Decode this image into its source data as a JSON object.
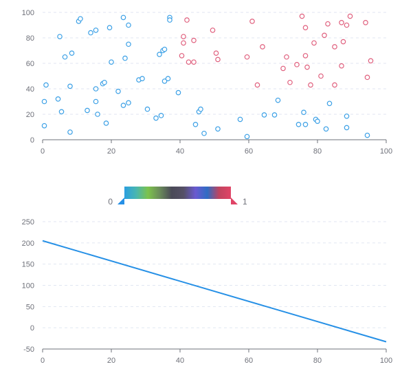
{
  "chart_data": [
    {
      "type": "scatter",
      "xlim": [
        0,
        100
      ],
      "ylim": [
        0,
        100
      ],
      "x_ticks": [
        "0",
        "20",
        "40",
        "60",
        "80",
        "100"
      ],
      "y_ticks": [
        "0",
        "20",
        "40",
        "60",
        "80",
        "100"
      ],
      "grid": true,
      "series": [
        {
          "color": "#3ba0e6",
          "points": [
            [
              0.5,
              11
            ],
            [
              0.5,
              30
            ],
            [
              1,
              43
            ],
            [
              4.5,
              32
            ],
            [
              5,
              81
            ],
            [
              5.5,
              22
            ],
            [
              6.5,
              65
            ],
            [
              8,
              42
            ],
            [
              8,
              6
            ],
            [
              8.5,
              68
            ],
            [
              10.5,
              93
            ],
            [
              11,
              95
            ],
            [
              13,
              23
            ],
            [
              14,
              84
            ],
            [
              15.5,
              86
            ],
            [
              15.5,
              40
            ],
            [
              15.5,
              30
            ],
            [
              16,
              20
            ],
            [
              17.5,
              44
            ],
            [
              18,
              45
            ],
            [
              18.5,
              13
            ],
            [
              19.5,
              88
            ],
            [
              20,
              61
            ],
            [
              22,
              38
            ],
            [
              23.5,
              96
            ],
            [
              23.5,
              27
            ],
            [
              24,
              64
            ],
            [
              25,
              90
            ],
            [
              25,
              75
            ],
            [
              25,
              29
            ],
            [
              28,
              47
            ],
            [
              29,
              48
            ],
            [
              30.5,
              24
            ],
            [
              33,
              17
            ],
            [
              34,
              67
            ],
            [
              34.5,
              19
            ],
            [
              35,
              70
            ],
            [
              35.5,
              71
            ],
            [
              35.5,
              46
            ],
            [
              36.5,
              48
            ],
            [
              37,
              96
            ],
            [
              37,
              94
            ],
            [
              39.5,
              37
            ],
            [
              44.5,
              12
            ],
            [
              45.5,
              22
            ],
            [
              46,
              24
            ],
            [
              47,
              5
            ],
            [
              51,
              8.5
            ],
            [
              57.5,
              16
            ],
            [
              59.5,
              2.5
            ],
            [
              64.5,
              19.5
            ],
            [
              67.5,
              19.5
            ],
            [
              68.5,
              31
            ],
            [
              74.5,
              12
            ],
            [
              76,
              21.5
            ],
            [
              76.5,
              12
            ],
            [
              79.5,
              16
            ],
            [
              80,
              14.5
            ],
            [
              82.5,
              8.5
            ],
            [
              83.5,
              28.5
            ],
            [
              88.5,
              9.5
            ],
            [
              88.5,
              18.5
            ],
            [
              94.5,
              3.5
            ]
          ]
        },
        {
          "color": "#e0607e",
          "points": [
            [
              40.5,
              66
            ],
            [
              41,
              76
            ],
            [
              41,
              81
            ],
            [
              42,
              94
            ],
            [
              42.5,
              61
            ],
            [
              44,
              78
            ],
            [
              44,
              61
            ],
            [
              49.5,
              86
            ],
            [
              50.5,
              68
            ],
            [
              51,
              63
            ],
            [
              59.5,
              65
            ],
            [
              61,
              93
            ],
            [
              62.5,
              43
            ],
            [
              64,
              73
            ],
            [
              70,
              56
            ],
            [
              71,
              65
            ],
            [
              72,
              45
            ],
            [
              74,
              59
            ],
            [
              75.5,
              97
            ],
            [
              76.5,
              88
            ],
            [
              76.5,
              66
            ],
            [
              77,
              57
            ],
            [
              78,
              43
            ],
            [
              79,
              76
            ],
            [
              81,
              50
            ],
            [
              82,
              82
            ],
            [
              83,
              91
            ],
            [
              85,
              43
            ],
            [
              85,
              73
            ],
            [
              87,
              58
            ],
            [
              87,
              92
            ],
            [
              87.5,
              77
            ],
            [
              88.5,
              90
            ],
            [
              89.5,
              97
            ],
            [
              94,
              92
            ],
            [
              94.5,
              49
            ],
            [
              95.5,
              62
            ]
          ]
        }
      ]
    },
    {
      "type": "line",
      "xlim": [
        0,
        100
      ],
      "ylim": [
        -50,
        250
      ],
      "x_ticks": [
        "0",
        "20",
        "40",
        "60",
        "80",
        "100"
      ],
      "y_ticks": [
        "-50",
        "0",
        "50",
        "100",
        "150",
        "200",
        "250"
      ],
      "grid": true,
      "series": [
        {
          "color": "#2690e6",
          "x": [
            0,
            100
          ],
          "y": [
            205,
            -33
          ]
        }
      ]
    }
  ],
  "visual_map": {
    "min_label": "0",
    "max_label": "1",
    "gradient": [
      "#2b9fe0",
      "#49b6b0",
      "#7cc24c",
      "#6a8a5a",
      "#4a4a58",
      "#555066",
      "#6a5ad0",
      "#2f6cc4",
      "#c0445f",
      "#e04466"
    ],
    "min_handle_color": "#2690e6",
    "max_handle_color": "#e04466"
  }
}
